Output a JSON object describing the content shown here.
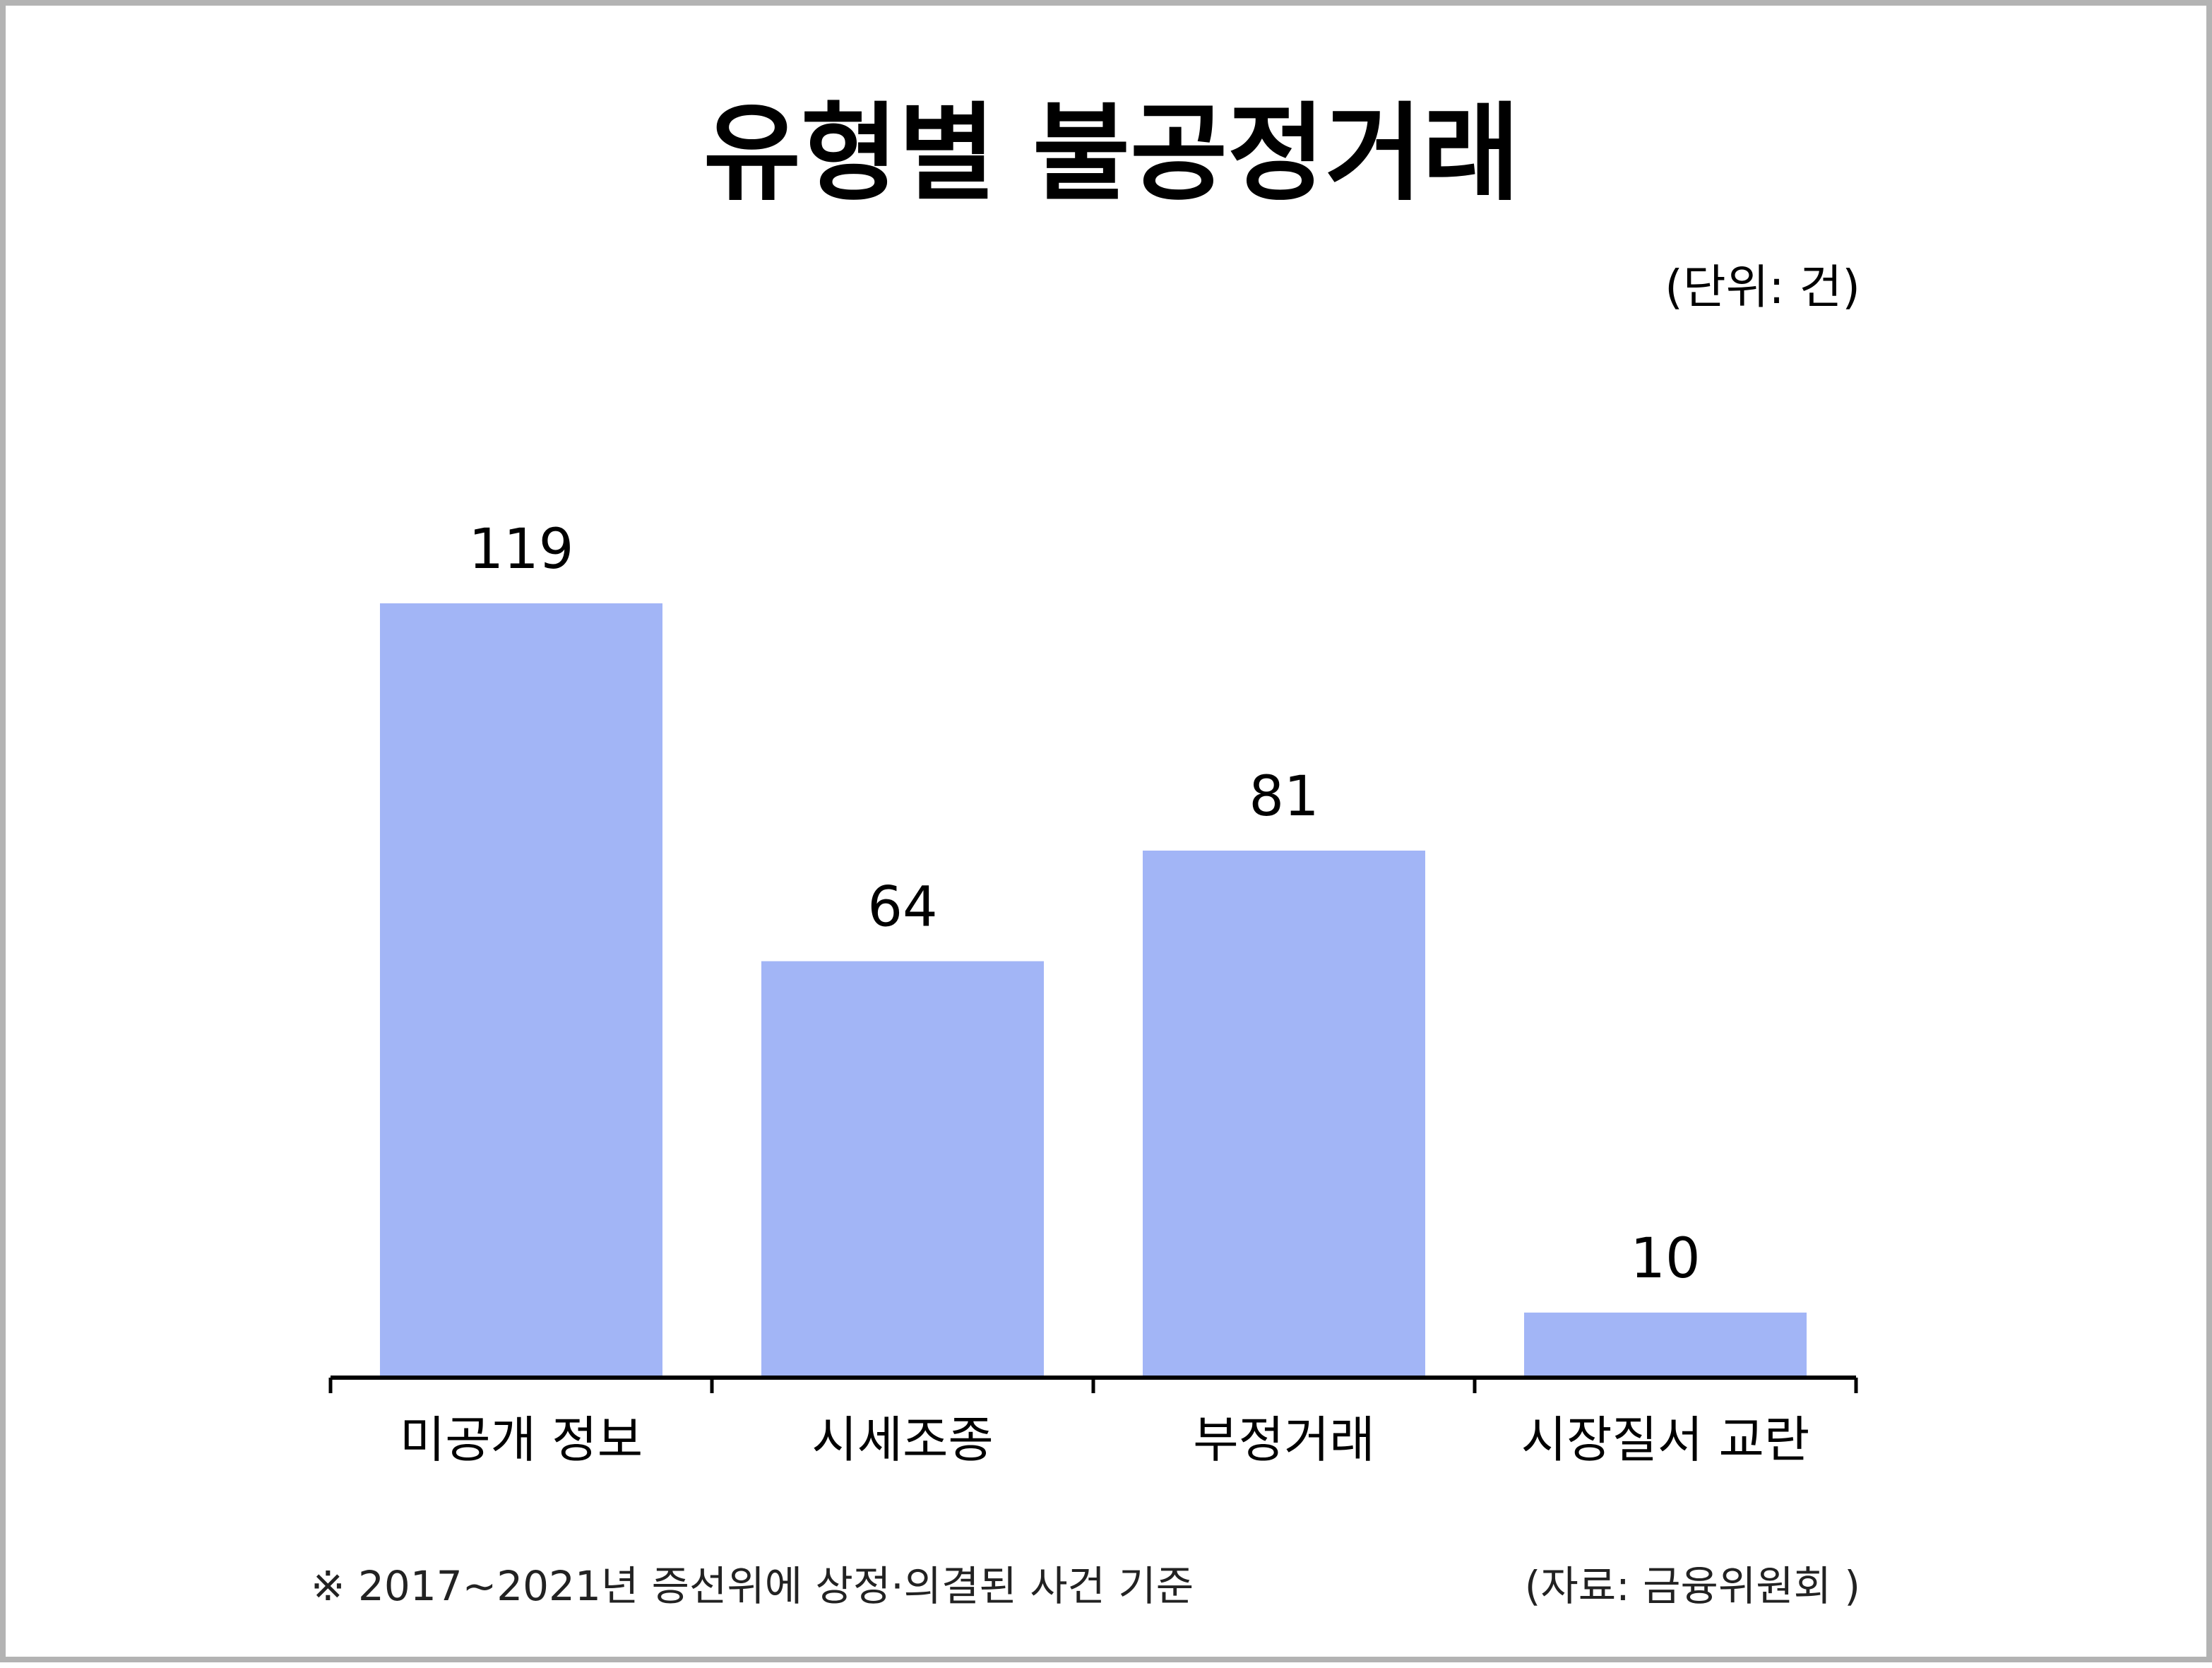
{
  "chart_data": {
    "type": "bar",
    "title": "유형별 불공정거래",
    "unit_label": "(단위: 건)",
    "categories": [
      "미공개 정보",
      "시세조종",
      "부정거래",
      "시장질서 교란"
    ],
    "values": [
      119,
      64,
      81,
      10
    ],
    "value_labels": [
      "119",
      "64",
      "81",
      "10"
    ],
    "bar_color": "#a2b5f6",
    "axis_color": "#000000",
    "ylim": [
      0,
      119
    ],
    "grid": false,
    "legend": "none"
  },
  "footer": {
    "note": "※ 2017~2021년 증선위에 상정·의결된 사건 기준",
    "source": "(자료: 금융위원회 )"
  }
}
